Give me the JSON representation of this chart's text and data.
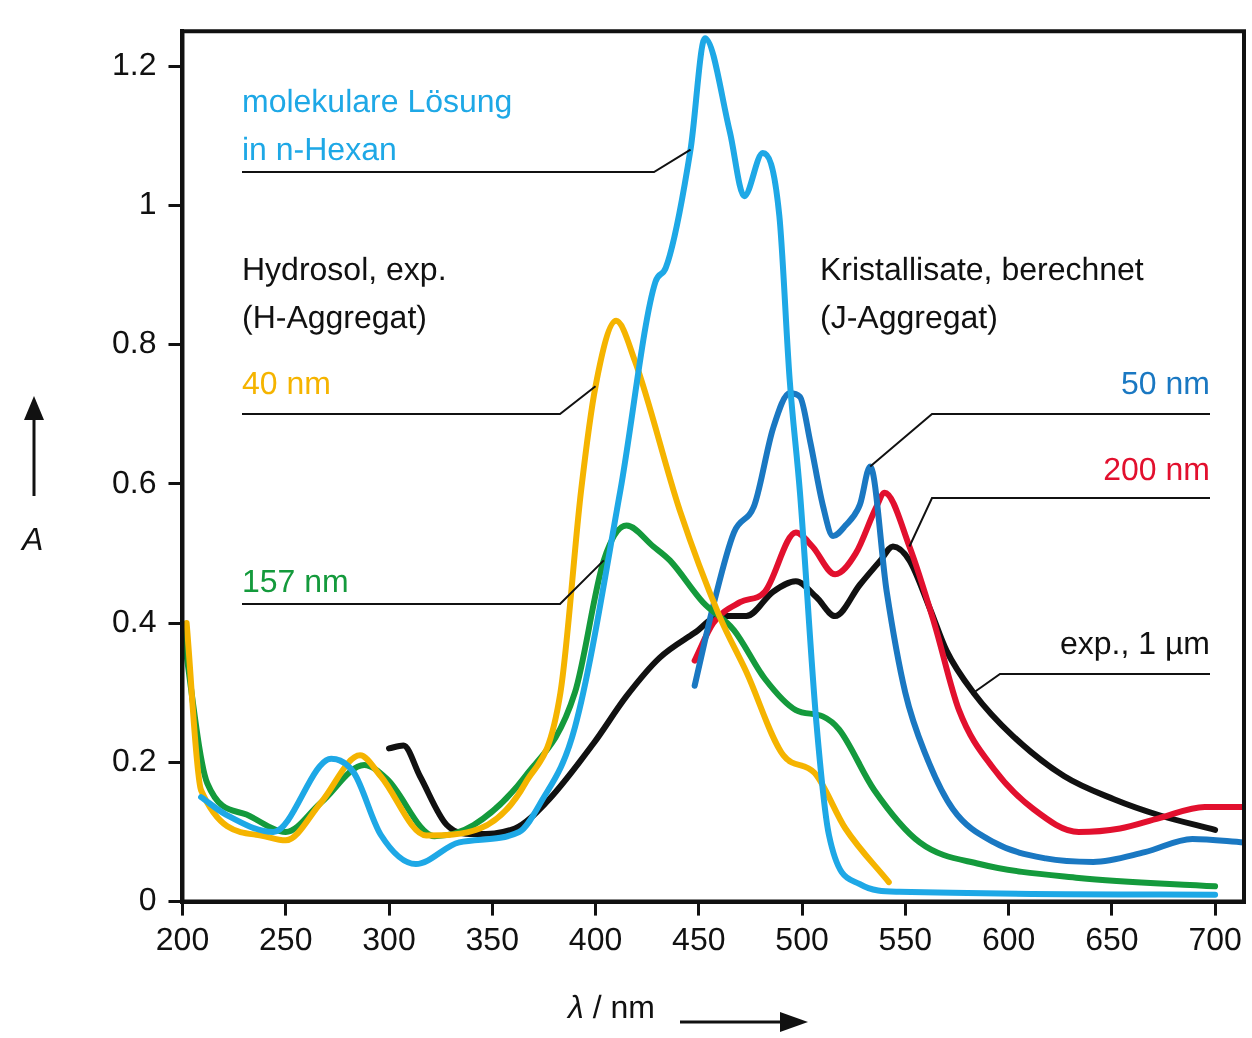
{
  "chart_data": {
    "type": "line",
    "xlabel": "λ / nm",
    "ylabel": "A",
    "xlim": [
      200,
      714
    ],
    "ylim": [
      0,
      1.25
    ],
    "xticks": [
      200,
      250,
      300,
      350,
      400,
      450,
      500,
      550,
      600,
      650,
      700
    ],
    "yticks": [
      0,
      0.2,
      0.4,
      0.6,
      0.8,
      1.0,
      1.2
    ],
    "grid": false,
    "legend": false,
    "marker": "none",
    "line_style": "solid",
    "annotations": [
      "Hydrosol, exp.\n(H-Aggregat)",
      "Kristallisate, berechnet\n(J-Aggregat)"
    ],
    "series": [
      {
        "name": "molekulare Lösung\nin n-Hexan",
        "color": "#1ea8e6",
        "x": [
          209,
          221,
          244,
          272,
          283,
          296,
          313,
          334,
          363,
          373,
          390,
          412,
          429,
          434,
          446,
          453,
          465,
          472,
          481,
          489,
          494,
          499,
          507,
          513,
          528,
          547,
          700
        ],
        "values": [
          0.15,
          0.125,
          0.1,
          0.205,
          0.185,
          0.096,
          0.054,
          0.085,
          0.1,
          0.14,
          0.25,
          0.59,
          0.89,
          0.91,
          1.08,
          1.24,
          1.106,
          1.013,
          1.075,
          0.985,
          0.75,
          0.587,
          0.255,
          0.096,
          0.025,
          0.014,
          0.01
        ]
      },
      {
        "name": "40 nm",
        "color": "#f5b400",
        "x": [
          202,
          209,
          238,
          250,
          267,
          286,
          296,
          318,
          344,
          366,
          383,
          393,
          400,
          410,
          419,
          441,
          460,
          473,
          491,
          506,
          521,
          542
        ],
        "values": [
          0.4,
          0.16,
          0.095,
          0.088,
          0.142,
          0.21,
          0.18,
          0.095,
          0.105,
          0.17,
          0.3,
          0.59,
          0.74,
          0.834,
          0.777,
          0.56,
          0.41,
          0.33,
          0.21,
          0.185,
          0.105,
          0.028
        ]
      },
      {
        "name": "157 nm",
        "color": "#149a3c",
        "x": [
          200,
          212,
          231,
          250,
          267,
          288,
          299,
          322,
          341,
          366,
          390,
          404,
          415,
          428,
          436,
          452,
          467,
          482,
          497,
          510,
          518,
          535,
          557,
          586,
          634,
          700
        ],
        "values": [
          0.394,
          0.17,
          0.125,
          0.1,
          0.142,
          0.196,
          0.176,
          0.094,
          0.11,
          0.18,
          0.3,
          0.49,
          0.54,
          0.51,
          0.49,
          0.43,
          0.39,
          0.32,
          0.275,
          0.266,
          0.247,
          0.16,
          0.085,
          0.054,
          0.034,
          0.022
        ]
      },
      {
        "name": "50 nm",
        "color": "#1a78c2",
        "x": [
          448,
          457,
          467,
          477,
          486,
          494,
          499,
          504,
          510,
          515,
          521,
          528,
          533,
          541,
          550,
          560,
          573,
          593,
          618,
          641,
          666,
          689,
          714
        ],
        "values": [
          0.31,
          0.425,
          0.53,
          0.57,
          0.68,
          0.73,
          0.725,
          0.66,
          0.57,
          0.525,
          0.54,
          0.57,
          0.625,
          0.445,
          0.3,
          0.21,
          0.133,
          0.085,
          0.062,
          0.057,
          0.071,
          0.09,
          0.085
        ]
      },
      {
        "name": "200 nm",
        "color": "#e2102e",
        "x": [
          448,
          457,
          470,
          482,
          497,
          505,
          516,
          526,
          536,
          540,
          552,
          564,
          576,
          593,
          612,
          634,
          654,
          673,
          695,
          714
        ],
        "values": [
          0.346,
          0.4,
          0.43,
          0.445,
          0.53,
          0.51,
          0.47,
          0.5,
          0.567,
          0.587,
          0.51,
          0.4,
          0.275,
          0.19,
          0.133,
          0.1,
          0.105,
          0.12,
          0.136,
          0.136
        ]
      },
      {
        "name": "exp., 1 µm",
        "color": "#111111",
        "x": [
          300,
          307,
          315,
          328,
          341,
          361,
          376,
          399,
          415,
          431,
          448,
          460,
          473,
          486,
          497,
          507,
          516,
          528,
          538,
          544,
          552,
          562,
          570,
          583,
          602,
          627,
          651,
          673,
          700
        ],
        "values": [
          0.22,
          0.224,
          0.18,
          0.11,
          0.097,
          0.105,
          0.142,
          0.227,
          0.295,
          0.35,
          0.386,
          0.41,
          0.41,
          0.445,
          0.46,
          0.437,
          0.41,
          0.455,
          0.49,
          0.51,
          0.49,
          0.42,
          0.36,
          0.3,
          0.238,
          0.18,
          0.147,
          0.124,
          0.103
        ]
      }
    ]
  }
}
